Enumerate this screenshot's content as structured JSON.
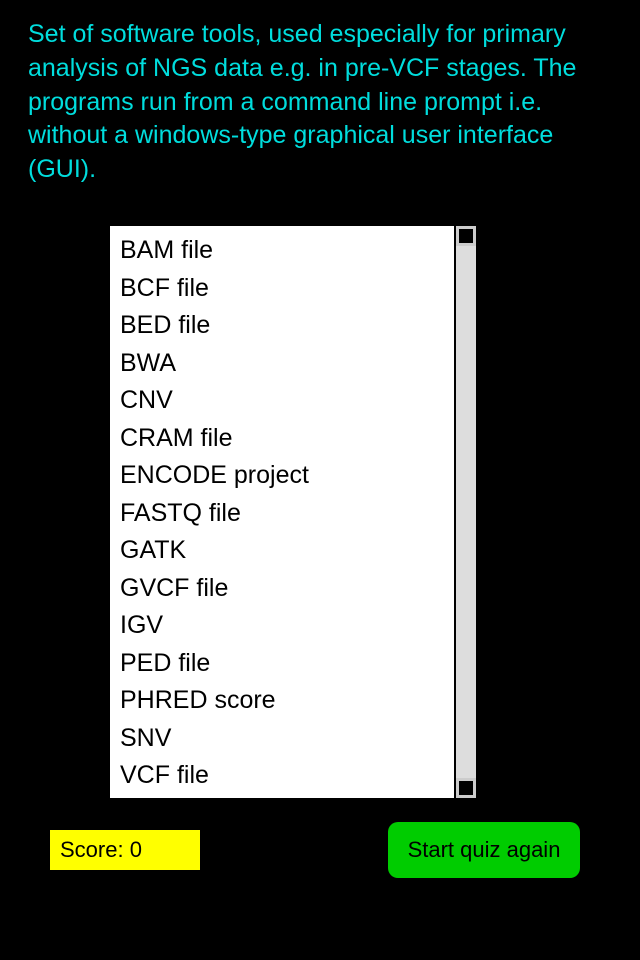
{
  "question": {
    "text": "Set of software tools, used especially for primary analysis of NGS data e.g. in pre-VCF stages. The programs run from a command line prompt i.e. without a windows-type graphical user interface (GUI)."
  },
  "answers": {
    "items": [
      "BAM file",
      "BCF file",
      "BED file",
      "BWA",
      "CNV",
      "CRAM file",
      "ENCODE project",
      "FASTQ file",
      "GATK",
      "GVCF file",
      "IGV",
      "PED file",
      "PHRED score",
      "SNV",
      "VCF file"
    ]
  },
  "score": {
    "label": "Score: 0"
  },
  "controls": {
    "restart_label": "Start quiz again"
  },
  "styling": {
    "background_color": "#000000",
    "question_color": "#00dddd",
    "list_background": "#ffffff",
    "score_background": "#ffff00",
    "button_background": "#00cc00",
    "question_fontsize": 25,
    "list_fontsize": 25,
    "button_fontsize": 22
  }
}
